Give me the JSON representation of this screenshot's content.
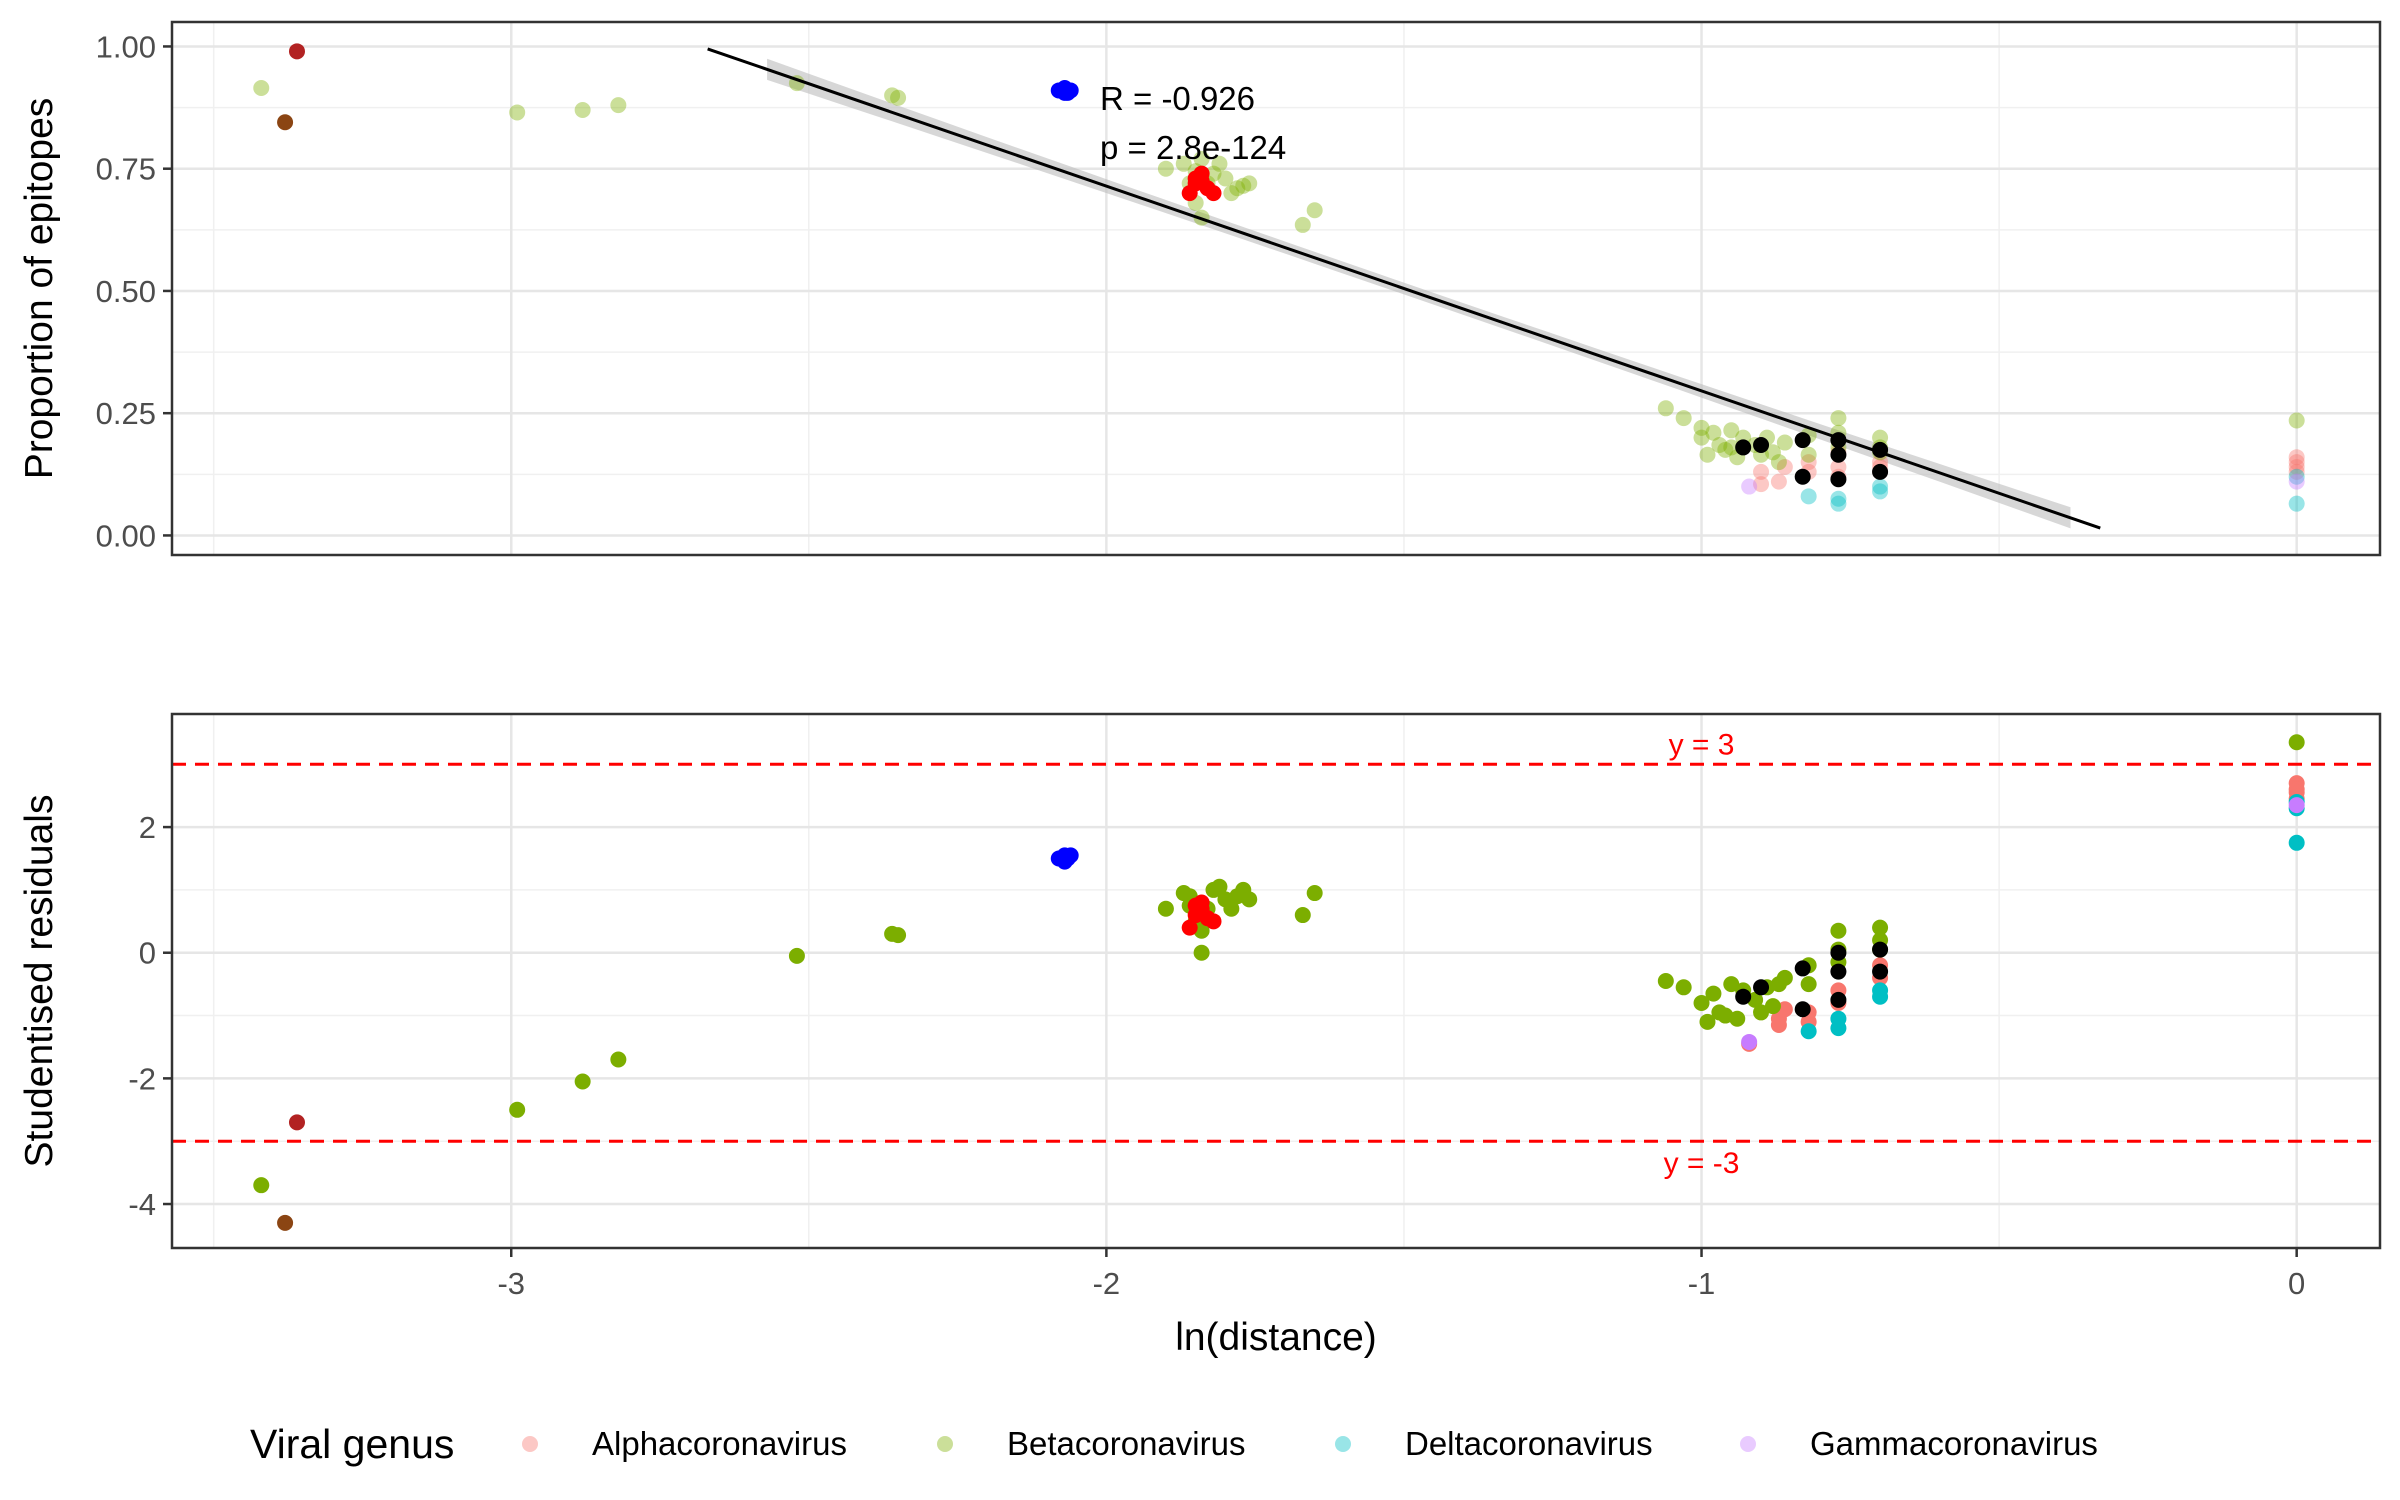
{
  "chart_data": [
    {
      "type": "scatter",
      "title": "",
      "xlabel": "",
      "ylabel": "Proportion of epitopes",
      "xlim": [
        -3.57,
        0.14
      ],
      "ylim": [
        -0.04,
        1.05
      ],
      "yticks": [
        0,
        0.25,
        0.5,
        0.75,
        1
      ],
      "ytick_labels": [
        "0.00",
        "0.25",
        "0.50",
        "0.75",
        "1.00"
      ],
      "grid": true,
      "annotations": [
        "R = -0.926",
        "p = 2.8e-124"
      ],
      "fit_line": {
        "x": [
          -2.67,
          -0.33
        ],
        "y": [
          0.995,
          0.015
        ]
      },
      "fit_band": {
        "x_start": -2.57,
        "x_end": -0.38
      },
      "series": [
        {
          "name": "Alphacoronavirus",
          "color": "#F8766D",
          "points": [
            [
              -0.87,
              0.11
            ],
            [
              -0.9,
              0.105
            ],
            [
              -0.82,
              0.13
            ],
            [
              -0.82,
              0.15
            ],
            [
              -0.77,
              0.12
            ],
            [
              -0.77,
              0.14
            ],
            [
              -0.77,
              0.17
            ],
            [
              -0.7,
              0.14
            ],
            [
              -0.7,
              0.13
            ],
            [
              -0.7,
              0.15
            ],
            [
              0,
              0.15
            ],
            [
              0,
              0.14
            ],
            [
              0,
              0.13
            ],
            [
              0,
              0.16
            ],
            [
              -0.86,
              0.14
            ],
            [
              -0.9,
              0.13
            ]
          ]
        },
        {
          "name": "Betacoronavirus",
          "color": "#7CAE00",
          "points": [
            [
              -3.42,
              0.915
            ],
            [
              -2.99,
              0.865
            ],
            [
              -2.88,
              0.87
            ],
            [
              -2.82,
              0.88
            ],
            [
              -2.52,
              0.925
            ],
            [
              -2.36,
              0.9
            ],
            [
              -2.35,
              0.895
            ],
            [
              -1.9,
              0.75
            ],
            [
              -1.87,
              0.76
            ],
            [
              -1.86,
              0.72
            ],
            [
              -1.85,
              0.68
            ],
            [
              -1.84,
              0.65
            ],
            [
              -1.82,
              0.74
            ],
            [
              -1.8,
              0.73
            ],
            [
              -1.79,
              0.7
            ],
            [
              -1.78,
              0.71
            ],
            [
              -1.77,
              0.715
            ],
            [
              -1.76,
              0.72
            ],
            [
              -1.84,
              0.77
            ],
            [
              -1.81,
              0.76
            ],
            [
              -1.67,
              0.635
            ],
            [
              -1.65,
              0.665
            ],
            [
              -1.83,
              0.72
            ],
            [
              -1.85,
              0.745
            ],
            [
              -1.06,
              0.26
            ],
            [
              -1.03,
              0.24
            ],
            [
              -1.0,
              0.2
            ],
            [
              -0.99,
              0.165
            ],
            [
              -0.98,
              0.21
            ],
            [
              -0.97,
              0.185
            ],
            [
              -0.96,
              0.175
            ],
            [
              -0.95,
              0.215
            ],
            [
              -0.94,
              0.16
            ],
            [
              -0.93,
              0.2
            ],
            [
              -0.91,
              0.185
            ],
            [
              -0.9,
              0.165
            ],
            [
              -0.89,
              0.2
            ],
            [
              -0.88,
              0.17
            ],
            [
              -0.87,
              0.15
            ],
            [
              -0.86,
              0.19
            ],
            [
              -0.82,
              0.165
            ],
            [
              -0.82,
              0.205
            ],
            [
              -0.77,
              0.24
            ],
            [
              -0.77,
              0.21
            ],
            [
              -0.77,
              0.18
            ],
            [
              -0.7,
              0.2
            ],
            [
              -0.7,
              0.18
            ],
            [
              -0.7,
              0.17
            ],
            [
              0,
              0.235
            ],
            [
              -1.0,
              0.22
            ],
            [
              -0.95,
              0.18
            ]
          ]
        },
        {
          "name": "Deltacoronavirus",
          "color": "#00BFC4",
          "points": [
            [
              -0.82,
              0.08
            ],
            [
              -0.77,
              0.065
            ],
            [
              -0.77,
              0.075
            ],
            [
              -0.7,
              0.09
            ],
            [
              -0.7,
              0.1
            ],
            [
              0,
              0.065
            ],
            [
              0,
              0.12
            ]
          ]
        },
        {
          "name": "Gammacoronavirus",
          "color": "#C77CFF",
          "points": [
            [
              -0.92,
              0.1
            ],
            [
              0,
              0.11
            ]
          ]
        },
        {
          "name": "",
          "color": "#B22222",
          "points": [
            [
              -3.36,
              0.99
            ]
          ]
        },
        {
          "name": "",
          "color": "#8B4513",
          "points": [
            [
              -3.38,
              0.845
            ]
          ]
        },
        {
          "name": "",
          "color": "#0000FF",
          "points": [
            [
              -2.08,
              0.91
            ],
            [
              -2.07,
              0.905
            ],
            [
              -2.07,
              0.915
            ],
            [
              -2.06,
              0.91
            ],
            [
              -2.065,
              0.905
            ]
          ]
        },
        {
          "name": "",
          "color": "#FF0000",
          "points": [
            [
              -1.86,
              0.7
            ],
            [
              -1.85,
              0.72
            ],
            [
              -1.84,
              0.74
            ],
            [
              -1.83,
              0.71
            ],
            [
              -1.82,
              0.7
            ],
            [
              -1.85,
              0.73
            ],
            [
              -1.84,
              0.725
            ]
          ]
        },
        {
          "name": "",
          "color": "#000000",
          "points": [
            [
              -0.93,
              0.18
            ],
            [
              -0.9,
              0.185
            ],
            [
              -0.83,
              0.195
            ],
            [
              -0.83,
              0.12
            ],
            [
              -0.77,
              0.195
            ],
            [
              -0.77,
              0.165
            ],
            [
              -0.77,
              0.115
            ],
            [
              -0.7,
              0.175
            ],
            [
              -0.7,
              0.13
            ]
          ]
        }
      ]
    },
    {
      "type": "scatter",
      "title": "",
      "xlabel": "ln(distance)",
      "ylabel": "Studentised residuals",
      "xlim": [
        -3.57,
        0.14
      ],
      "ylim": [
        -4.7,
        3.8
      ],
      "xticks": [
        -3,
        -2,
        -1,
        0
      ],
      "xtick_labels": [
        "-3",
        "-2",
        "-1",
        "0"
      ],
      "yticks": [
        -4,
        -2,
        0,
        2
      ],
      "ytick_labels": [
        "-4",
        "-2",
        "0",
        "2"
      ],
      "grid": true,
      "reference_lines": [
        {
          "y": 3,
          "label": "y = 3",
          "color": "#FF0000",
          "style": "dashed"
        },
        {
          "y": -3,
          "label": "y = -3",
          "color": "#FF0000",
          "style": "dashed"
        }
      ],
      "series": [
        {
          "name": "Alphacoronavirus",
          "color": "#F8766D",
          "points": [
            [
              -0.92,
              -1.45
            ],
            [
              -0.87,
              -1.05
            ],
            [
              -0.87,
              -1.15
            ],
            [
              -0.82,
              -0.95
            ],
            [
              -0.82,
              -1.1
            ],
            [
              -0.77,
              -0.6
            ],
            [
              -0.77,
              -0.8
            ],
            [
              -0.7,
              -0.2
            ],
            [
              -0.7,
              -0.4
            ],
            [
              0,
              2.7
            ],
            [
              0,
              2.55
            ],
            [
              0,
              2.45
            ],
            [
              0,
              2.6
            ],
            [
              -0.86,
              -0.9
            ]
          ]
        },
        {
          "name": "Betacoronavirus",
          "color": "#7CAE00",
          "points": [
            [
              -3.42,
              -3.7
            ],
            [
              -2.99,
              -2.5
            ],
            [
              -2.88,
              -2.05
            ],
            [
              -2.82,
              -1.7
            ],
            [
              -2.52,
              -0.05
            ],
            [
              -2.36,
              0.3
            ],
            [
              -2.35,
              0.28
            ],
            [
              -1.9,
              0.7
            ],
            [
              -1.87,
              0.95
            ],
            [
              -1.86,
              0.9
            ],
            [
              -1.85,
              0.5
            ],
            [
              -1.84,
              0.0
            ],
            [
              -1.82,
              1.0
            ],
            [
              -1.8,
              0.85
            ],
            [
              -1.79,
              0.7
            ],
            [
              -1.78,
              0.9
            ],
            [
              -1.77,
              1.0
            ],
            [
              -1.76,
              0.85
            ],
            [
              -1.84,
              0.35
            ],
            [
              -1.81,
              1.05
            ],
            [
              -1.67,
              0.6
            ],
            [
              -1.65,
              0.95
            ],
            [
              -1.83,
              0.7
            ],
            [
              -1.86,
              0.75
            ],
            [
              -1.06,
              -0.45
            ],
            [
              -1.03,
              -0.55
            ],
            [
              -1.0,
              -0.8
            ],
            [
              -0.99,
              -1.1
            ],
            [
              -0.98,
              -0.65
            ],
            [
              -0.97,
              -0.95
            ],
            [
              -0.96,
              -1.0
            ],
            [
              -0.95,
              -0.5
            ],
            [
              -0.94,
              -1.05
            ],
            [
              -0.93,
              -0.6
            ],
            [
              -0.91,
              -0.75
            ],
            [
              -0.9,
              -0.95
            ],
            [
              -0.89,
              -0.55
            ],
            [
              -0.88,
              -0.85
            ],
            [
              -0.87,
              -0.5
            ],
            [
              -0.86,
              -0.4
            ],
            [
              -0.82,
              -0.5
            ],
            [
              -0.82,
              -0.2
            ],
            [
              -0.77,
              0.35
            ],
            [
              -0.77,
              0.05
            ],
            [
              -0.77,
              -0.15
            ],
            [
              -0.7,
              0.4
            ],
            [
              -0.7,
              0.2
            ],
            [
              -0.7,
              0.05
            ],
            [
              0,
              3.35
            ]
          ]
        },
        {
          "name": "Deltacoronavirus",
          "color": "#00BFC4",
          "points": [
            [
              -0.82,
              -1.25
            ],
            [
              -0.77,
              -1.2
            ],
            [
              -0.77,
              -1.05
            ],
            [
              -0.7,
              -0.6
            ],
            [
              -0.7,
              -0.7
            ],
            [
              0,
              1.75
            ],
            [
              0,
              2.3
            ],
            [
              0,
              2.4
            ]
          ]
        },
        {
          "name": "Gammacoronavirus",
          "color": "#C77CFF",
          "points": [
            [
              -0.92,
              -1.42
            ],
            [
              0,
              2.35
            ]
          ]
        },
        {
          "name": "",
          "color": "#B22222",
          "points": [
            [
              -3.36,
              -2.7
            ]
          ]
        },
        {
          "name": "",
          "color": "#8B4513",
          "points": [
            [
              -3.38,
              -4.3
            ]
          ]
        },
        {
          "name": "",
          "color": "#0000FF",
          "points": [
            [
              -2.08,
              1.5
            ],
            [
              -2.07,
              1.55
            ],
            [
              -2.07,
              1.45
            ],
            [
              -2.06,
              1.55
            ],
            [
              -2.065,
              1.5
            ]
          ]
        },
        {
          "name": "",
          "color": "#FF0000",
          "points": [
            [
              -1.86,
              0.4
            ],
            [
              -1.85,
              0.6
            ],
            [
              -1.84,
              0.8
            ],
            [
              -1.83,
              0.55
            ],
            [
              -1.82,
              0.5
            ],
            [
              -1.85,
              0.75
            ],
            [
              -1.84,
              0.7
            ]
          ]
        },
        {
          "name": "",
          "color": "#000000",
          "points": [
            [
              -0.93,
              -0.7
            ],
            [
              -0.9,
              -0.55
            ],
            [
              -0.83,
              -0.25
            ],
            [
              -0.83,
              -0.9
            ],
            [
              -0.77,
              0.0
            ],
            [
              -0.77,
              -0.3
            ],
            [
              -0.77,
              -0.75
            ],
            [
              -0.7,
              0.05
            ],
            [
              -0.7,
              -0.3
            ]
          ]
        }
      ]
    }
  ],
  "legend": {
    "title": "Viral genus",
    "position": "bottom",
    "items": [
      {
        "label": "Alphacoronavirus",
        "color": "#F8766D"
      },
      {
        "label": "Betacoronavirus",
        "color": "#7CAE00"
      },
      {
        "label": "Deltacoronavirus",
        "color": "#00BFC4"
      },
      {
        "label": "Gammacoronavirus",
        "color": "#C77CFF"
      }
    ]
  }
}
